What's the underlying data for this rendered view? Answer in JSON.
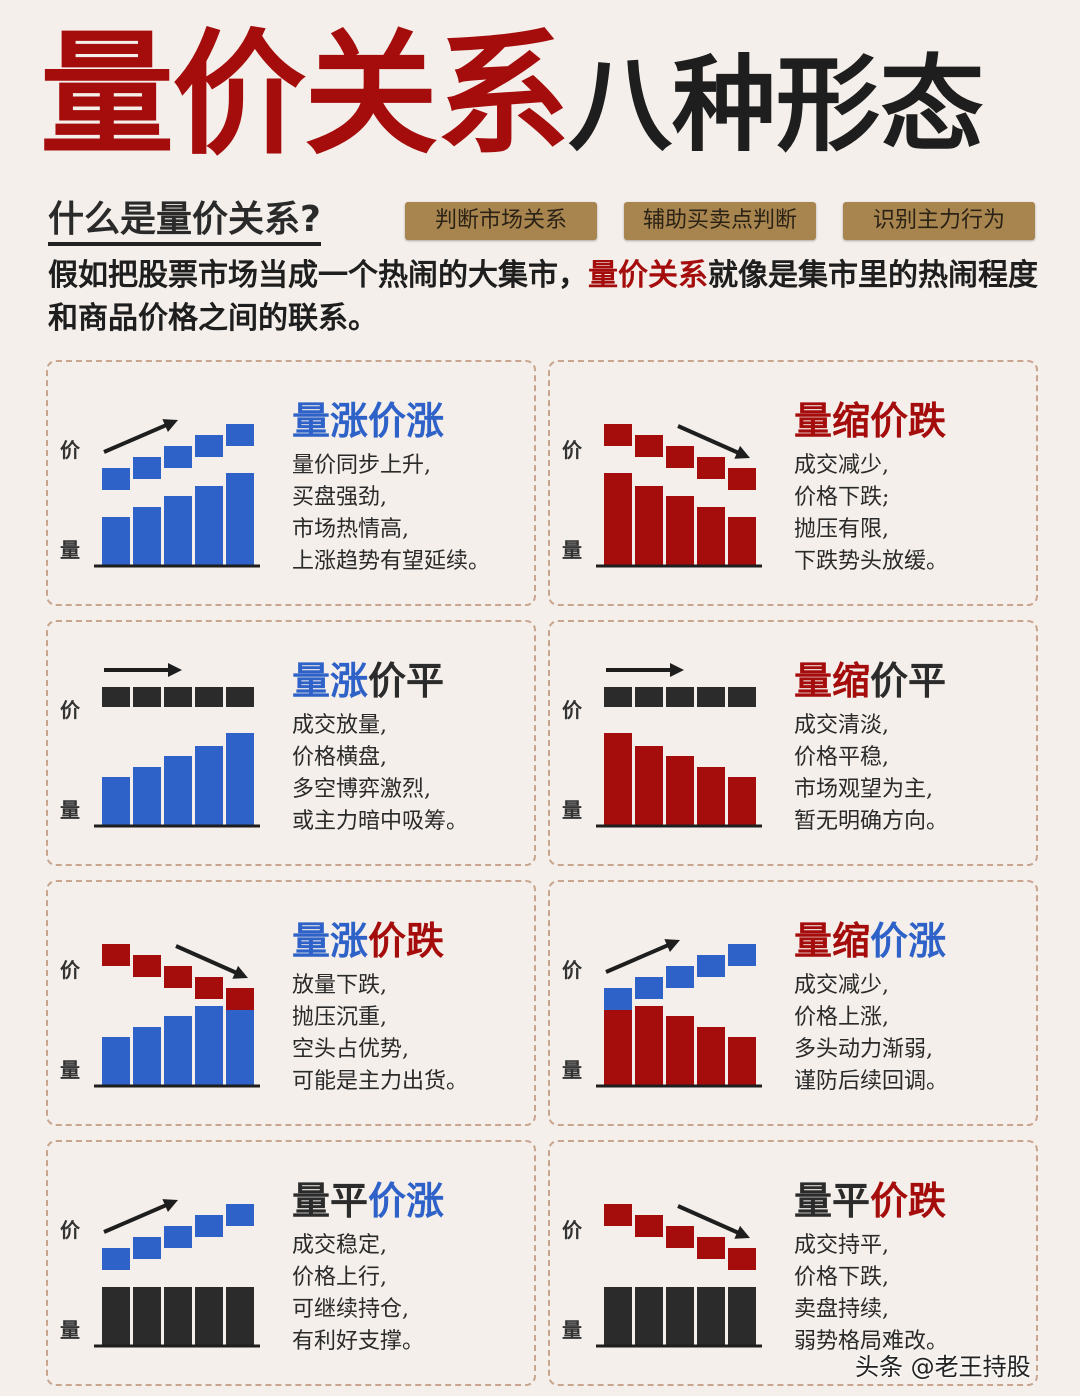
{
  "header": {
    "title_red": "量价关系",
    "title_black": "八种形态"
  },
  "subheading": "什么是量价关系?",
  "tags": [
    "判断市场关系",
    "辅助买卖点判断",
    "识别主力行为"
  ],
  "intro": {
    "before": "假如把股票市场当成一个热闹的大集市，",
    "highlight": "量价关系",
    "after": "就像是集市里的热闹程度和商品价格之间的联系。"
  },
  "axis_labels": {
    "price": "价",
    "volume": "量"
  },
  "colors": {
    "red": "#a50d0d",
    "blue": "#2f62c8",
    "dark": "#2b2b2b",
    "tag": "#a8854f"
  },
  "cards": [
    {
      "title": [
        {
          "text": "量涨价涨",
          "color": "blue"
        }
      ],
      "volume": "up",
      "price": "up",
      "volume_color": "blue",
      "price_color": "blue",
      "lines": [
        "量价同步上升,",
        "买盘强劲,",
        "市场热情高,",
        "上涨趋势有望延续。"
      ]
    },
    {
      "title": [
        {
          "text": "量缩价跌",
          "color": "red"
        }
      ],
      "volume": "down",
      "price": "down",
      "volume_color": "red",
      "price_color": "red",
      "lines": [
        "成交减少,",
        "价格下跌;",
        "抛压有限,",
        "下跌势头放缓。"
      ]
    },
    {
      "title": [
        {
          "text": "量涨",
          "color": "blue"
        },
        {
          "text": "价平",
          "color": "dark"
        }
      ],
      "volume": "up",
      "price": "flat",
      "volume_color": "blue",
      "price_color": "dark",
      "lines": [
        "成交放量,",
        "价格横盘,",
        "多空博弈激烈,",
        "或主力暗中吸筹。"
      ]
    },
    {
      "title": [
        {
          "text": "量缩",
          "color": "red"
        },
        {
          "text": "价平",
          "color": "dark"
        }
      ],
      "volume": "down",
      "price": "flat",
      "volume_color": "red",
      "price_color": "dark",
      "lines": [
        "成交清淡,",
        "价格平稳,",
        "市场观望为主,",
        "暂无明确方向。"
      ]
    },
    {
      "title": [
        {
          "text": "量涨",
          "color": "blue"
        },
        {
          "text": "价跌",
          "color": "red"
        }
      ],
      "volume": "up",
      "price": "down",
      "volume_color": "blue",
      "price_color": "red",
      "lines": [
        "放量下跌,",
        "抛压沉重,",
        "空头占优势,",
        "可能是主力出货。"
      ]
    },
    {
      "title": [
        {
          "text": "量缩",
          "color": "red"
        },
        {
          "text": "价涨",
          "color": "blue"
        }
      ],
      "volume": "down",
      "price": "up",
      "volume_color": "red",
      "price_color": "blue",
      "lines": [
        "成交减少,",
        "价格上涨,",
        "多头动力渐弱,",
        "谨防后续回调。"
      ]
    },
    {
      "title": [
        {
          "text": "量平",
          "color": "dark"
        },
        {
          "text": "价涨",
          "color": "blue"
        }
      ],
      "volume": "flat",
      "price": "up",
      "volume_color": "dark",
      "price_color": "blue",
      "lines": [
        "成交稳定,",
        "价格上行,",
        "可继续持仓,",
        "有利好支撑。"
      ]
    },
    {
      "title": [
        {
          "text": "量平",
          "color": "dark"
        },
        {
          "text": "价跌",
          "color": "red"
        }
      ],
      "volume": "flat",
      "price": "down",
      "volume_color": "dark",
      "price_color": "red",
      "lines": [
        "成交持平,",
        "价格下跌,",
        "卖盘持续,",
        "弱势格局难改。"
      ]
    }
  ],
  "watermark": "头条 @老王持股"
}
